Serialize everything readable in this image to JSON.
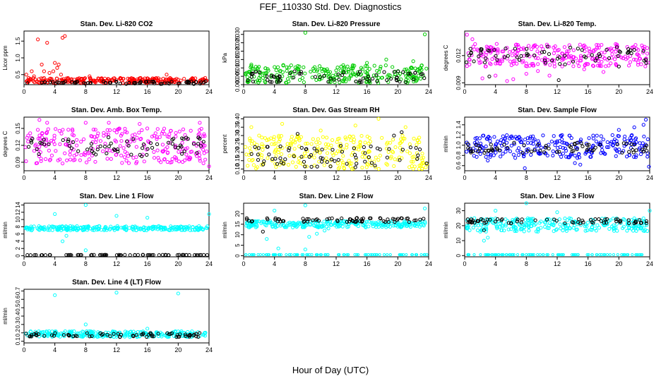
{
  "title": "FEF_110330  Std. Dev. Diagnostics",
  "xlabel": "Hour of Day (UTC)",
  "colors": {
    "red": "#ff0000",
    "green": "#00cc00",
    "magenta": "#ff00ff",
    "yellow": "#ffff00",
    "blue": "#0000ff",
    "cyan": "#00ffff",
    "black": "#000000"
  },
  "chart_data": [
    {
      "type": "scatter",
      "title": "Stan. Dev. Li-820 CO2",
      "ylabel": "Licor ppm",
      "xlim": [
        0,
        24
      ],
      "ylim": [
        0.2,
        1.8
      ],
      "xticks": [
        "0",
        "4",
        "8",
        "12",
        "16",
        "20",
        "24"
      ],
      "yticks": [
        0.5,
        1.0,
        1.5
      ],
      "ytick_labels": [
        "0.5",
        "1.0",
        "1.5"
      ],
      "series": [
        {
          "color": "red",
          "band": [
            0.25,
            0.4
          ],
          "points": [
            [
              0.3,
              0.5
            ],
            [
              0.6,
              0.4
            ],
            [
              1.0,
              0.6
            ],
            [
              1.3,
              0.45
            ],
            [
              1.8,
              1.55
            ],
            [
              2.3,
              0.8
            ],
            [
              2.6,
              0.6
            ],
            [
              3.0,
              1.45
            ],
            [
              3.3,
              0.55
            ],
            [
              3.8,
              0.6
            ],
            [
              4.0,
              0.85
            ],
            [
              4.3,
              0.7
            ],
            [
              4.5,
              0.8
            ],
            [
              4.8,
              0.5
            ],
            [
              5.0,
              1.6
            ],
            [
              5.3,
              1.65
            ],
            [
              5.7,
              0.4
            ],
            [
              6.5,
              0.35
            ],
            [
              7.5,
              0.35
            ],
            [
              8.5,
              0.45
            ],
            [
              10.0,
              0.35
            ],
            [
              12.5,
              0.4
            ],
            [
              15.2,
              0.3
            ],
            [
              18.5,
              0.5
            ],
            [
              20.0,
              0.35
            ],
            [
              22.0,
              0.35
            ],
            [
              23.5,
              0.4
            ]
          ]
        },
        {
          "color": "black",
          "band": [
            0.22,
            0.3
          ],
          "points": []
        }
      ]
    },
    {
      "type": "scatter",
      "title": "Stan. Dev. Li-820 Pressure",
      "ylabel": "kPa",
      "xlim": [
        0,
        24
      ],
      "ylim": [
        0,
        0.032
      ],
      "xticks": [
        "0",
        "4",
        "8",
        "12",
        "16",
        "20",
        "24"
      ],
      "yticks": [
        0,
        0.005,
        0.01,
        0.015,
        0.02,
        0.025,
        0.03
      ],
      "ytick_labels": [
        "0.000",
        "0.005",
        "0.010",
        "0.015",
        "0.020",
        "0.025",
        "0.030"
      ],
      "series": [
        {
          "color": "green",
          "band": [
            0.001,
            0.012
          ],
          "points": [
            [
              8.0,
              0.031
            ],
            [
              23.5,
              0.03
            ],
            [
              18.5,
              0.015
            ],
            [
              22.0,
              0.014
            ],
            [
              16.0,
              0.013
            ],
            [
              1.0,
              0.012
            ]
          ]
        },
        {
          "color": "black",
          "band": [
            0.0015,
            0.008
          ],
          "points": []
        }
      ]
    },
    {
      "type": "scatter",
      "title": "Stan. Dev. Li-820 Temp.",
      "ylabel": "degrees C",
      "xlim": [
        0,
        24
      ],
      "ylim": [
        0.0088,
        0.0147
      ],
      "xticks": [
        "0",
        "4",
        "8",
        "12",
        "16",
        "20",
        "24"
      ],
      "yticks": [
        0.009,
        0.012
      ],
      "ytick_labels": [
        "0.009",
        "0.012"
      ],
      "series": [
        {
          "color": "magenta",
          "band": [
            0.0108,
            0.0133
          ],
          "points": [
            [
              0.3,
              0.0143
            ],
            [
              1.0,
              0.0138
            ],
            [
              2.3,
              0.0095
            ],
            [
              4.0,
              0.0098
            ],
            [
              5.5,
              0.0092
            ],
            [
              6.3,
              0.0094
            ],
            [
              8.0,
              0.01
            ],
            [
              9.5,
              0.0103
            ],
            [
              11.0,
              0.0098
            ],
            [
              15.5,
              0.0105
            ],
            [
              18.0,
              0.0102
            ]
          ]
        },
        {
          "color": "black",
          "band": [
            0.011,
            0.013
          ],
          "points": [
            [
              3.2,
              0.0097
            ],
            [
              12.2,
              0.0093
            ],
            [
              20.0,
              0.0108
            ]
          ]
        }
      ]
    },
    {
      "type": "scatter",
      "title": "Stan. Dev. Amb. Box Temp.",
      "ylabel": "degrees C",
      "xlim": [
        0,
        24
      ],
      "ylim": [
        0.075,
        0.17
      ],
      "xticks": [
        "0",
        "4",
        "8",
        "12",
        "16",
        "20",
        "24"
      ],
      "yticks": [
        0.09,
        0.12,
        0.15
      ],
      "ytick_labels": [
        "0.09",
        "0.12",
        "0.15"
      ],
      "series": [
        {
          "color": "magenta",
          "band": [
            0.088,
            0.15
          ],
          "points": [
            [
              2.0,
              0.165
            ],
            [
              3.0,
              0.16
            ],
            [
              8.0,
              0.16
            ],
            [
              11.0,
              0.16
            ],
            [
              15.0,
              0.158
            ],
            [
              22.8,
              0.16
            ],
            [
              24.0,
              0.083
            ],
            [
              5.0,
              0.088
            ]
          ]
        },
        {
          "color": "black",
          "band": [
            0.1,
            0.135
          ],
          "points": []
        }
      ]
    },
    {
      "type": "scatter",
      "title": "Stan. Dev. Gas Stream RH",
      "ylabel": "percent",
      "xlim": [
        0,
        24
      ],
      "ylim": [
        0.09,
        0.41
      ],
      "xticks": [
        "0",
        "4",
        "8",
        "12",
        "16",
        "20",
        "24"
      ],
      "yticks": [
        0.1,
        0.15,
        0.2,
        0.25,
        0.3,
        0.35,
        0.4
      ],
      "ytick_labels": [
        "0.10",
        "0.15",
        "0.20",
        "0.25",
        "0.30",
        "0.35",
        "0.40"
      ],
      "series": [
        {
          "color": "yellow",
          "band": [
            0.1,
            0.3
          ],
          "points": [
            [
              17.5,
              0.4
            ],
            [
              14.5,
              0.36
            ],
            [
              5.0,
              0.37
            ],
            [
              1.0,
              0.35
            ],
            [
              21.0,
              0.35
            ],
            [
              10.0,
              0.33
            ],
            [
              2.0,
              0.3
            ]
          ]
        },
        {
          "color": "black",
          "band": [
            0.11,
            0.24
          ],
          "points": [
            [
              19.5,
              0.3
            ],
            [
              20.5,
              0.32
            ],
            [
              7.0,
              0.31
            ]
          ]
        }
      ]
    },
    {
      "type": "scatter",
      "title": "Stan. Dev. Sample Flow",
      "ylabel": "ml/min",
      "xlim": [
        0,
        24
      ],
      "ylim": [
        0.5,
        1.55
      ],
      "xticks": [
        "0",
        "4",
        "8",
        "12",
        "16",
        "20",
        "24"
      ],
      "yticks": [
        0.6,
        0.8,
        1.0,
        1.2,
        1.4
      ],
      "ytick_labels": [
        "0.6",
        "0.8",
        "1.0",
        "1.2",
        "1.4"
      ],
      "series": [
        {
          "color": "blue",
          "band": [
            0.75,
            1.2
          ],
          "points": [
            [
              23.5,
              1.5
            ],
            [
              23.2,
              1.4
            ],
            [
              22.0,
              1.35
            ],
            [
              20.0,
              1.3
            ],
            [
              7.8,
              0.55
            ],
            [
              23.9,
              0.58
            ],
            [
              3.0,
              0.7
            ],
            [
              14.3,
              0.65
            ],
            [
              15.0,
              0.62
            ]
          ]
        },
        {
          "color": "black",
          "band": [
            0.85,
            1.05
          ],
          "points": []
        }
      ]
    },
    {
      "type": "scatter",
      "title": "Stan. Dev. Line 1 Flow",
      "ylabel": "ml/min",
      "xlim": [
        0,
        24
      ],
      "ylim": [
        -0.3,
        14.5
      ],
      "xticks": [
        "0",
        "4",
        "8",
        "12",
        "16",
        "20",
        "24"
      ],
      "yticks": [
        0,
        2,
        4,
        6,
        8,
        10,
        12,
        14
      ],
      "ytick_labels": [
        "0",
        "2",
        "4",
        "6",
        "8",
        "10",
        "12",
        "14"
      ],
      "series": [
        {
          "color": "cyan",
          "band": [
            7.0,
            8.2
          ],
          "points": [
            [
              8.0,
              14.0
            ],
            [
              4.0,
              11.5
            ],
            [
              24.0,
              11.5
            ],
            [
              12.0,
              11.0
            ],
            [
              16.0,
              10.5
            ],
            [
              5.5,
              5.5
            ],
            [
              5.0,
              4.0
            ],
            [
              8.0,
              1.5
            ]
          ]
        },
        {
          "color": "black",
          "band": [
            0.15,
            0.25
          ],
          "points": []
        }
      ]
    },
    {
      "type": "scatter",
      "title": "Stan. Dev. Line 2 Flow",
      "ylabel": "ml/min",
      "xlim": [
        0,
        24
      ],
      "ylim": [
        -0.5,
        25
      ],
      "xticks": [
        "0",
        "4",
        "8",
        "12",
        "16",
        "20",
        "24"
      ],
      "yticks": [
        0,
        5,
        10,
        15,
        20
      ],
      "ytick_labels": [
        "0",
        "5",
        "10",
        "15",
        "20"
      ],
      "series": [
        {
          "color": "cyan",
          "band": [
            13.5,
            16.5
          ],
          "points": [
            [
              8.0,
              24.0
            ],
            [
              4.0,
              21.5
            ],
            [
              23.5,
              22.5
            ],
            [
              3.0,
              8.0
            ],
            [
              4.5,
              3.5
            ],
            [
              8.0,
              3.0
            ],
            [
              8.5,
              9.0
            ],
            [
              9.5,
              10.5
            ],
            [
              10.5,
              12.0
            ],
            [
              11.0,
              13.0
            ]
          ]
        },
        {
          "color": "black",
          "band": [
            16.0,
            18.0
          ],
          "points": [
            [
              2.5,
              11.5
            ]
          ]
        }
      ]
    },
    {
      "type": "scatter",
      "title": "Stan. Dev. Line 3 Flow",
      "ylabel": "ml/min",
      "xlim": [
        0,
        24
      ],
      "ylim": [
        -0.8,
        35
      ],
      "xticks": [
        "0",
        "4",
        "8",
        "12",
        "16",
        "20",
        "24"
      ],
      "yticks": [
        0,
        10,
        20,
        30
      ],
      "ytick_labels": [
        "0",
        "10",
        "20",
        "30"
      ],
      "series": [
        {
          "color": "cyan",
          "band": [
            16.0,
            25.0
          ],
          "points": [
            [
              8.0,
              35.0
            ],
            [
              4.0,
              30.0
            ],
            [
              24.0,
              30.0
            ],
            [
              12.0,
              29.0
            ],
            [
              2.5,
              10.0
            ],
            [
              3.0,
              12.0
            ]
          ]
        },
        {
          "color": "black",
          "band": [
            21.5,
            24.5
          ],
          "points": [
            [
              2.5,
              17.0
            ]
          ]
        }
      ]
    },
    {
      "type": "scatter",
      "title": "Stan. Dev. Line 4 (LT) Flow",
      "ylabel": "ml/min",
      "xlim": [
        0,
        24
      ],
      "ylim": [
        0.08,
        0.72
      ],
      "xticks": [
        "0",
        "4",
        "8",
        "12",
        "16",
        "20",
        "24"
      ],
      "yticks": [
        0.1,
        0.2,
        0.3,
        0.4,
        0.5,
        0.6,
        0.7
      ],
      "ytick_labels": [
        "0.1",
        "0.2",
        "0.3",
        "0.4",
        "0.5",
        "0.6",
        "0.7"
      ],
      "series": [
        {
          "color": "cyan",
          "band": [
            0.15,
            0.22
          ],
          "points": [
            [
              4.0,
              0.65
            ],
            [
              12.0,
              0.68
            ],
            [
              20.0,
              0.67
            ],
            [
              8.0,
              0.3
            ],
            [
              16.0,
              0.25
            ]
          ]
        },
        {
          "color": "black",
          "band": [
            0.15,
            0.2
          ],
          "points": []
        }
      ]
    }
  ]
}
